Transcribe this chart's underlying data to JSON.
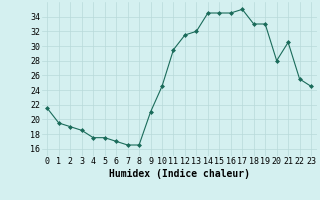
{
  "x": [
    0,
    1,
    2,
    3,
    4,
    5,
    6,
    7,
    8,
    9,
    10,
    11,
    12,
    13,
    14,
    15,
    16,
    17,
    18,
    19,
    20,
    21,
    22,
    23
  ],
  "y": [
    21.5,
    19.5,
    19.0,
    18.5,
    17.5,
    17.5,
    17.0,
    16.5,
    16.5,
    21.0,
    24.5,
    29.5,
    31.5,
    32.0,
    34.5,
    34.5,
    34.5,
    35.0,
    33.0,
    33.0,
    28.0,
    30.5,
    25.5,
    24.5
  ],
  "xlabel": "Humidex (Indice chaleur)",
  "ylim": [
    15,
    36
  ],
  "xlim": [
    -0.5,
    23.5
  ],
  "yticks": [
    16,
    18,
    20,
    22,
    24,
    26,
    28,
    30,
    32,
    34
  ],
  "xticks": [
    0,
    1,
    2,
    3,
    4,
    5,
    6,
    7,
    8,
    9,
    10,
    11,
    12,
    13,
    14,
    15,
    16,
    17,
    18,
    19,
    20,
    21,
    22,
    23
  ],
  "line_color": "#1a6b5a",
  "marker_color": "#1a6b5a",
  "bg_color": "#d4f0f0",
  "grid_color": "#b8dada",
  "xlabel_fontsize": 7,
  "tick_fontsize": 6
}
